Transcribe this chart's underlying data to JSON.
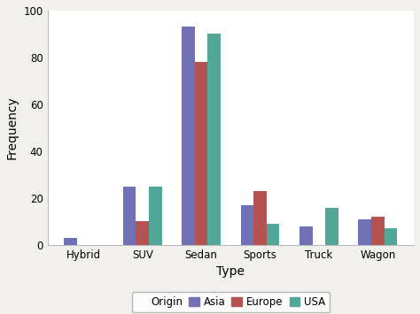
{
  "categories": [
    "Hybrid",
    "SUV",
    "Sedan",
    "Sports",
    "Truck",
    "Wagon"
  ],
  "series": {
    "Asia": [
      3,
      25,
      93,
      17,
      8,
      11
    ],
    "Europe": [
      0,
      10,
      78,
      23,
      0,
      12
    ],
    "USA": [
      0,
      25,
      90,
      9,
      16,
      7
    ]
  },
  "series_colors": {
    "Asia": "#7171b5",
    "Europe": "#b55252",
    "USA": "#52a898"
  },
  "series_order": [
    "Asia",
    "Europe",
    "USA"
  ],
  "xlabel": "Type",
  "ylabel": "Frequency",
  "ylim": [
    0,
    100
  ],
  "yticks": [
    0,
    20,
    40,
    60,
    80,
    100
  ],
  "legend_title": "Origin",
  "legend_labels": [
    "Asia",
    "Europe",
    "USA"
  ],
  "bar_width": 0.22,
  "background_color": "#f2f0ed",
  "plot_bg_color": "#ffffff",
  "tick_fontsize": 8.5,
  "label_fontsize": 10,
  "legend_fontsize": 8.5
}
